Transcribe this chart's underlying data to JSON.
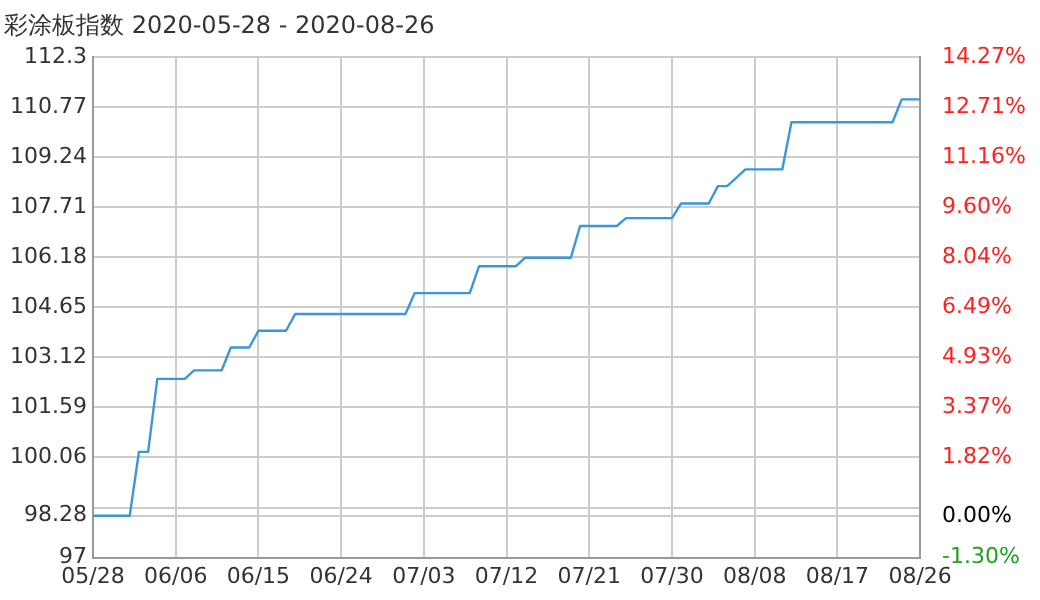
{
  "chart_data": {
    "type": "line",
    "title": "彩涂板指数 2020-05-28 - 2020-08-26",
    "x": [
      "2020-05-28",
      "2020-06-01",
      "2020-06-02",
      "2020-06-03",
      "2020-06-04",
      "2020-06-07",
      "2020-06-08",
      "2020-06-11",
      "2020-06-12",
      "2020-06-14",
      "2020-06-15",
      "2020-06-18",
      "2020-06-19",
      "2020-07-01",
      "2020-07-02",
      "2020-07-08",
      "2020-07-09",
      "2020-07-13",
      "2020-07-14",
      "2020-07-19",
      "2020-07-20",
      "2020-07-24",
      "2020-07-25",
      "2020-07-30",
      "2020-07-31",
      "2020-08-03",
      "2020-08-04",
      "2020-08-05",
      "2020-08-07",
      "2020-08-11",
      "2020-08-12",
      "2020-08-23",
      "2020-08-24",
      "2020-08-26"
    ],
    "series": [
      {
        "color": "#3a97d8",
        "values": [
          98.28,
          98.28,
          100.23,
          100.23,
          102.46,
          102.46,
          102.72,
          102.72,
          103.42,
          103.42,
          103.93,
          103.93,
          104.44,
          104.44,
          105.08,
          105.08,
          105.9,
          105.9,
          106.16,
          106.16,
          107.13,
          107.13,
          107.37,
          107.37,
          107.82,
          107.82,
          108.35,
          108.35,
          108.86,
          108.86,
          110.3,
          110.3,
          111.0,
          111.0
        ]
      }
    ],
    "xlim": [
      "2020-05-28",
      "2020-08-26"
    ],
    "xticks": [
      {
        "value": "2020-05-28",
        "label": "05/28"
      },
      {
        "value": "2020-06-06",
        "label": "06/06"
      },
      {
        "value": "2020-06-15",
        "label": "06/15"
      },
      {
        "value": "2020-06-24",
        "label": "06/24"
      },
      {
        "value": "2020-07-03",
        "label": "07/03"
      },
      {
        "value": "2020-07-12",
        "label": "07/12"
      },
      {
        "value": "2020-07-21",
        "label": "07/21"
      },
      {
        "value": "2020-07-30",
        "label": "07/30"
      },
      {
        "value": "2020-08-08",
        "label": "08/08"
      },
      {
        "value": "2020-08-17",
        "label": "08/17"
      },
      {
        "value": "2020-08-26",
        "label": "08/26"
      }
    ],
    "ylim": [
      97,
      112.3
    ],
    "yticks": [
      97,
      98.28,
      {
        "value": 98.53,
        "label": null
      },
      100.06,
      101.59,
      103.12,
      104.65,
      106.18,
      107.71,
      109.24,
      110.77,
      112.3
    ],
    "y2lim": [
      -1.3,
      14.27
    ],
    "y2ticks": [
      {
        "value": -1.3,
        "label": "-1.30%"
      },
      {
        "value": 0,
        "label": "0.00%"
      },
      {
        "value": 1.82,
        "label": "1.82%"
      },
      {
        "value": 3.37,
        "label": "3.37%"
      },
      {
        "value": 4.93,
        "label": "4.93%"
      },
      {
        "value": 6.49,
        "label": "6.49%"
      },
      {
        "value": 8.04,
        "label": "8.04%"
      },
      {
        "value": 9.6,
        "label": "9.60%"
      },
      {
        "value": 11.16,
        "label": "11.16%"
      },
      {
        "value": 12.71,
        "label": "12.71%"
      },
      {
        "value": 14.27,
        "label": "14.27%"
      }
    ],
    "grid": true,
    "legend": false,
    "marker": "none",
    "line_style": "solid"
  }
}
